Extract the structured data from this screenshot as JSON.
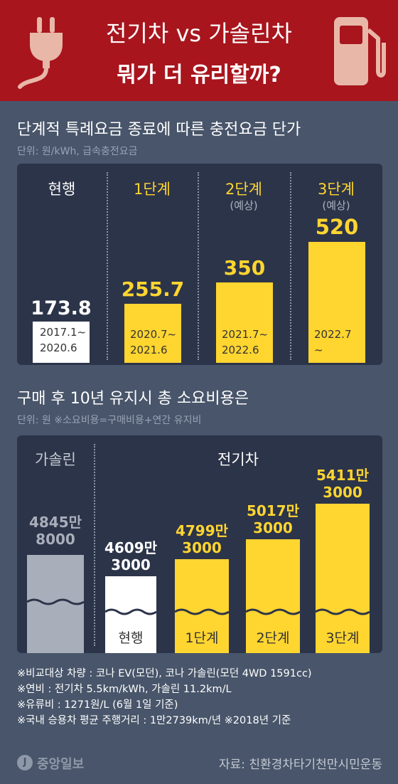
{
  "header": {
    "title_line1": "전기차 vs 가솔린차",
    "title_line2": "뭐가 더 유리할까?",
    "bg_color": "#a8151d",
    "icons": [
      "plug-icon",
      "fuel-pump-icon"
    ]
  },
  "section1": {
    "title": "단계적 특례요금 종료에 따른 충전요금 단가",
    "unit": "단위: 원/kWh, 급속충전요금"
  },
  "section2": {
    "title": "구매 후 10년 유지시 총 소요비용은",
    "unit": "단위: 원  ※소요비용=구매비용+연간 유지비"
  },
  "chart_data": [
    {
      "type": "bar",
      "title": "단계적 특례요금 종료에 따른 충전요금 단가",
      "unit": "원/kWh",
      "categories": [
        "현행",
        "1단계",
        "2단계",
        "3단계"
      ],
      "category_notes": [
        "",
        "",
        "(예상)",
        "(예상)"
      ],
      "values": [
        173.8,
        255.7,
        350,
        520
      ],
      "value_labels": [
        "173.8",
        "255.7",
        "350",
        "520"
      ],
      "periods": [
        [
          "2017.1~",
          "2020.6"
        ],
        [
          "2020.7~",
          "2021.6"
        ],
        [
          "2021.7~",
          "2022.6"
        ],
        [
          "2022.7",
          "~"
        ]
      ],
      "colors": [
        "#ffffff",
        "#ffd530",
        "#ffd530",
        "#ffd530"
      ]
    },
    {
      "type": "bar",
      "title": "구매 후 10년 유지시 총 소요비용은",
      "unit": "원",
      "groups": [
        {
          "name": "가솔린",
          "categories": [
            ""
          ]
        },
        {
          "name": "전기차",
          "categories": [
            "현행",
            "1단계",
            "2단계",
            "3단계"
          ]
        }
      ],
      "values": [
        48458000,
        46093000,
        47993000,
        50173000,
        54113000
      ],
      "value_labels": [
        [
          "4845만",
          "8000"
        ],
        [
          "4609만",
          "3000"
        ],
        [
          "4799만",
          "3000"
        ],
        [
          "5017만",
          "3000"
        ],
        [
          "5411만",
          "3000"
        ]
      ],
      "bar_labels": [
        "",
        "현행",
        "1단계",
        "2단계",
        "3단계"
      ],
      "colors": [
        "#a9aebb",
        "#ffffff",
        "#ffd530",
        "#ffd530",
        "#ffd530"
      ],
      "axis_break": true
    }
  ],
  "notes": [
    "※비교대상 차량 : 코나 EV(모던), 코나 가솔린(모던 4WD 1591cc)",
    "※연비 : 전기차 5.5km/kWh, 가솔린 11.2km/L",
    "※유류비 : 1271원/L (6월 1일 기준)",
    "※국내 승용차 평균 주행거리 : 1만2739km/년 ※2018년 기준"
  ],
  "footer": {
    "logo_text": "중앙일보",
    "source": "자료: 친환경차타기천만시민운동"
  }
}
